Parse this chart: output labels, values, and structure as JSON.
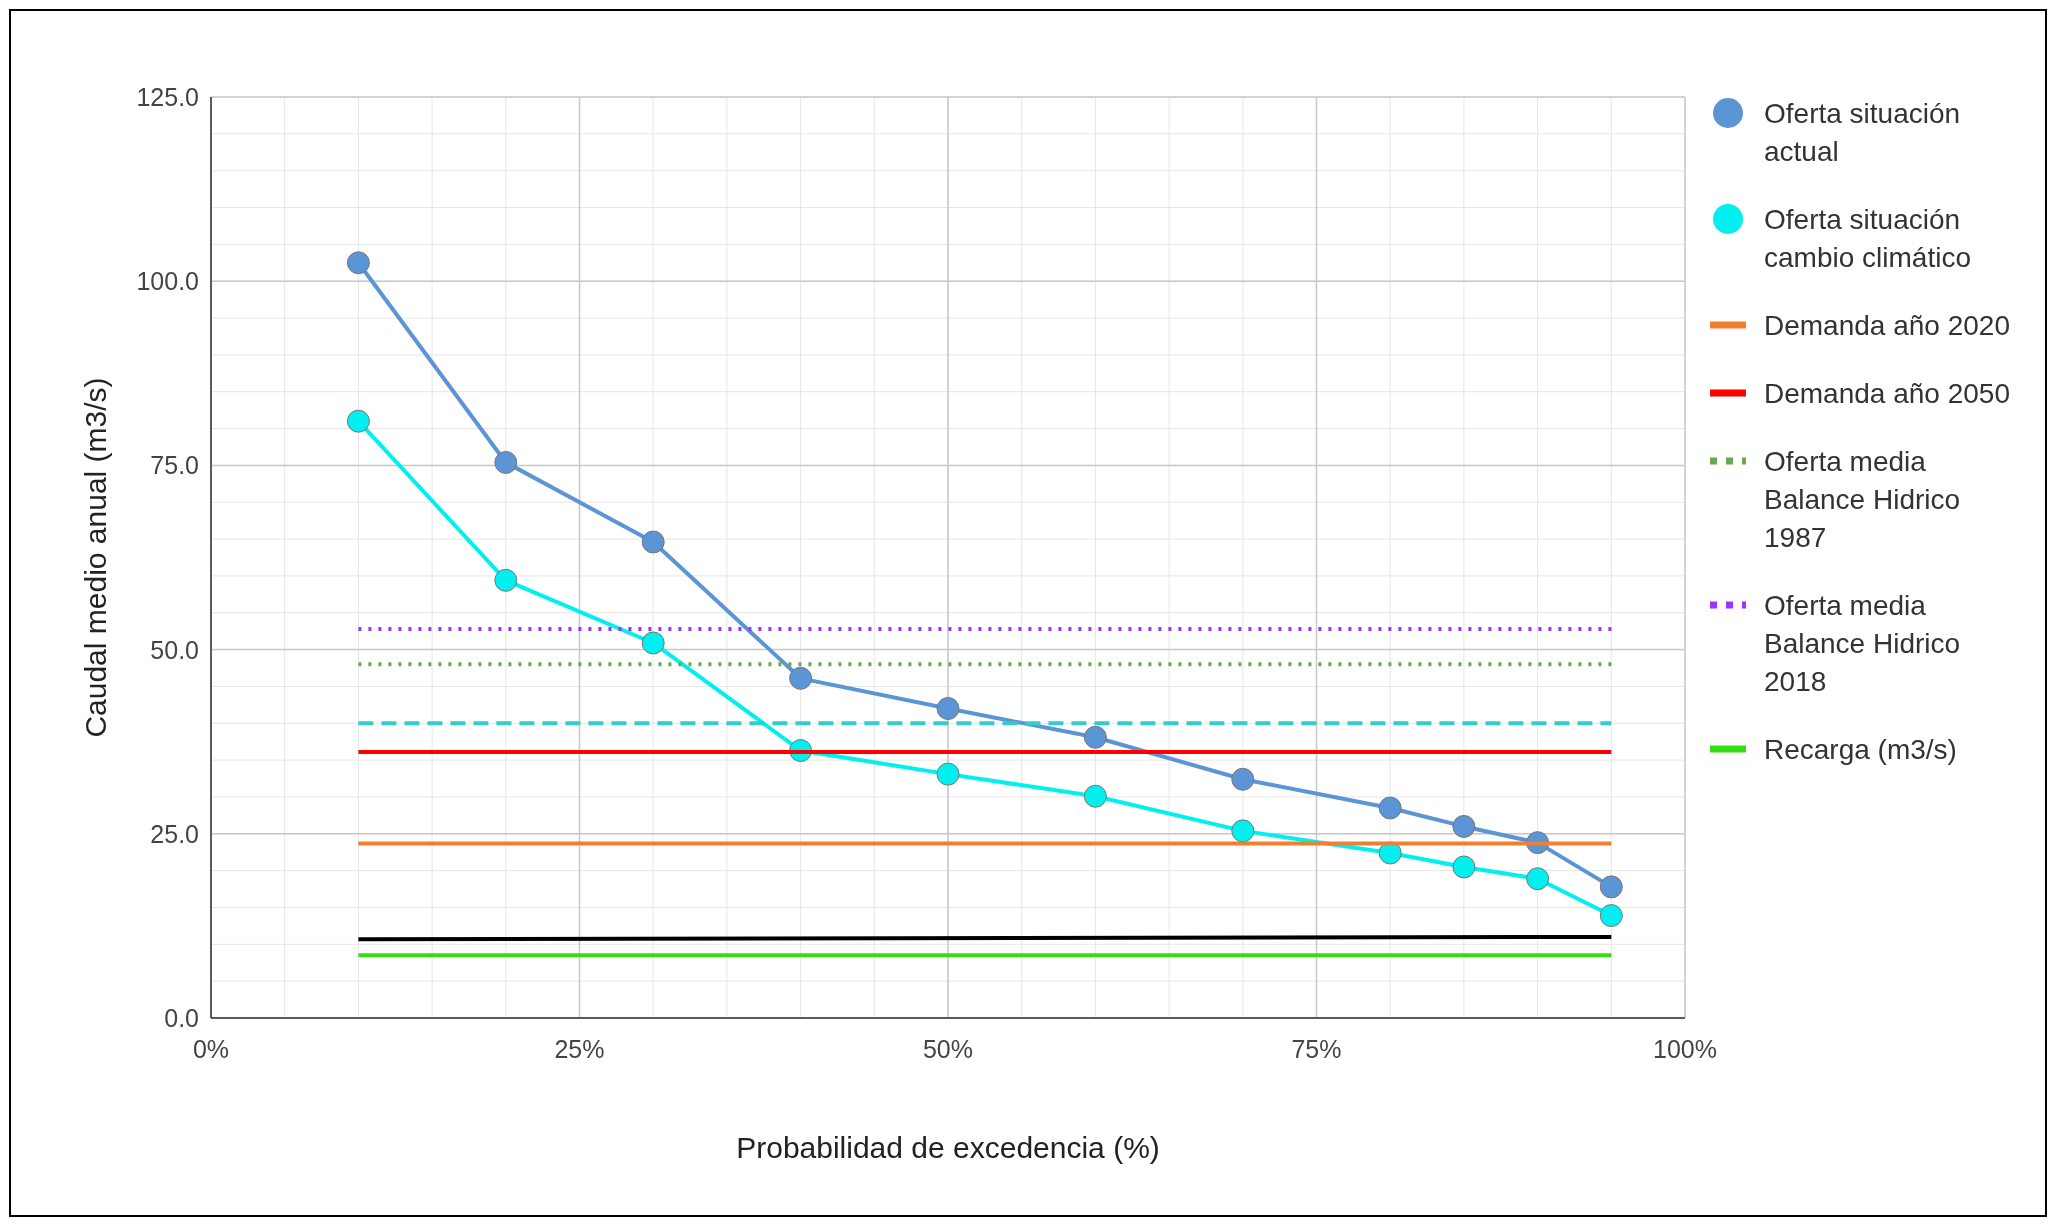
{
  "chart_data": {
    "type": "line",
    "xlabel": "Probabilidad de excedencia (%)",
    "ylabel": "Caudal medio anual (m3/s)",
    "xlim": [
      0,
      100
    ],
    "xticks": [
      {
        "value": 0,
        "label": "0%"
      },
      {
        "value": 25,
        "label": "25%"
      },
      {
        "value": 50,
        "label": "50%"
      },
      {
        "value": 75,
        "label": "75%"
      },
      {
        "value": 100,
        "label": "100%"
      }
    ],
    "ylim": [
      0,
      125
    ],
    "yticks": [
      {
        "value": 0,
        "label": "0.0"
      },
      {
        "value": 25,
        "label": "25.0"
      },
      {
        "value": 50,
        "label": "50.0"
      },
      {
        "value": 75,
        "label": "75.0"
      },
      {
        "value": 100,
        "label": "100.0"
      },
      {
        "value": 125,
        "label": "125.0"
      }
    ],
    "grid": true,
    "legend": "right",
    "series": [
      {
        "name": "Oferta situación actual",
        "color": "#5b95d5",
        "marker": "circle",
        "line_style": "solid",
        "x": [
          10,
          20,
          30,
          40,
          50,
          60,
          70,
          80,
          85,
          90,
          95
        ],
        "values": [
          102.5,
          75.4,
          64.6,
          46.1,
          42.0,
          38.1,
          32.4,
          28.5,
          26.0,
          23.8,
          17.8
        ]
      },
      {
        "name": "Oferta situación cambio climático",
        "color": "#00f0f0",
        "marker": "circle",
        "line_style": "solid",
        "x": [
          10,
          20,
          30,
          40,
          50,
          60,
          70,
          80,
          85,
          90,
          95
        ],
        "values": [
          81.0,
          59.4,
          50.9,
          36.3,
          33.1,
          30.1,
          25.4,
          22.4,
          20.5,
          18.9,
          13.9
        ]
      },
      {
        "name": "Demanda año 2020",
        "color": "#f08030",
        "marker": "none",
        "line_style": "solid",
        "x": [
          10,
          95
        ],
        "values": [
          23.7,
          23.7
        ]
      },
      {
        "name": "Demanda año 2050",
        "color": "#ff0000",
        "marker": "none",
        "line_style": "solid",
        "x": [
          10,
          95
        ],
        "values": [
          36.1,
          36.1
        ]
      },
      {
        "name": "Oferta media Balance Hidrico 1987",
        "color": "#6aa84f",
        "marker": "none",
        "line_style": "dotted",
        "x": [
          10,
          95
        ],
        "values": [
          48.0,
          48.0
        ]
      },
      {
        "name": "Oferta media Balance Hidrico 2018",
        "color": "#9933ff",
        "marker": "none",
        "line_style": "dotted",
        "x": [
          10,
          95
        ],
        "values": [
          52.8,
          52.8
        ]
      },
      {
        "name": "Recarga (m3/s)",
        "color": "#33dd11",
        "marker": "none",
        "line_style": "solid",
        "x": [
          10,
          95
        ],
        "values": [
          8.5,
          8.5
        ]
      },
      {
        "color": "#33cccc",
        "marker": "none",
        "line_style": "dashed",
        "x": [
          10,
          95
        ],
        "values": [
          40.0,
          40.0
        ]
      },
      {
        "color": "#000000",
        "marker": "none",
        "line_style": "solid",
        "x": [
          10,
          95
        ],
        "values": [
          10.7,
          11.0
        ]
      }
    ]
  }
}
